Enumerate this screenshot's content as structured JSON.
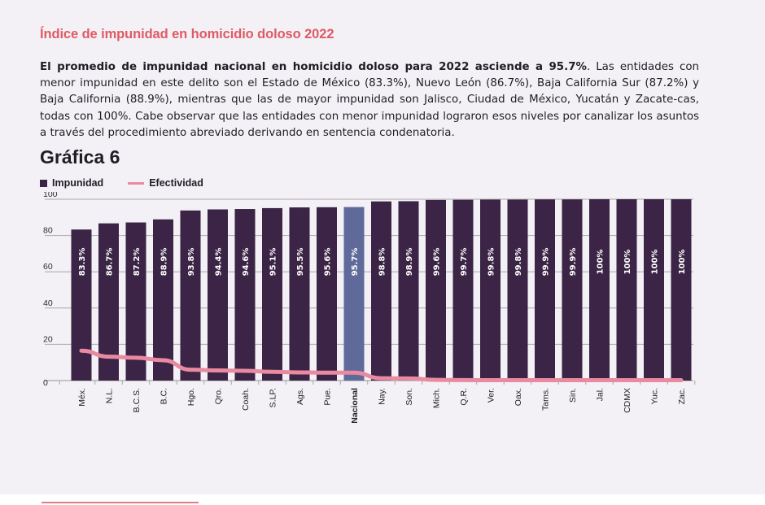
{
  "section_title": "Índice de impunidad en homicidio doloso 2022",
  "paragraph": {
    "bold": "El promedio de impunidad nacional en homicidio doloso para 2022 asciende a 95.7%",
    "rest": ". Las entidades con menor impunidad en este delito son el Estado de México (83.3%), Nuevo León (86.7%), Baja California Sur (87.2%) y Baja California (88.9%), mientras que las de mayor impunidad son Jalisco, Ciudad de México, Yucatán y Zacate-cas, todas con 100%. Cabe observar que las entidades con menor impunidad lograron esos niveles por canalizar los asuntos a través del procedimiento abreviado derivando en sentencia condenatoria."
  },
  "colors": {
    "title_accent": "#e05a63",
    "bar": "#3b2445",
    "bar_highlight": "#5f6a9a",
    "line": "#e98aa0",
    "grid": "#a8a6ab"
  },
  "chart_data": {
    "type": "bar",
    "title": "Gráfica 6",
    "xlabel": "",
    "ylabel": "",
    "ylim": [
      0,
      100
    ],
    "yticks": [
      0,
      20,
      40,
      60,
      80,
      100
    ],
    "grid": true,
    "legend_position": "top-left",
    "highlight_category": "Nacional",
    "categories": [
      "Méx.",
      "N.L.",
      "B.C.S.",
      "B.C.",
      "Hgo.",
      "Qro.",
      "Coah.",
      "S.LP.",
      "Ags.",
      "Pue.",
      "Nacional",
      "Nay.",
      "Son.",
      "Mich.",
      "Q.R.",
      "Ver.",
      "Oax.",
      "Tams.",
      "Sin.",
      "Jal.",
      "CDMX",
      "Yuc.",
      "Zac."
    ],
    "series": [
      {
        "name": "Impunidad",
        "type": "bar",
        "values": [
          83.3,
          86.7,
          87.2,
          88.9,
          93.8,
          94.4,
          94.6,
          95.1,
          95.5,
          95.6,
          95.7,
          98.8,
          98.9,
          99.6,
          99.7,
          99.8,
          99.8,
          99.9,
          99.9,
          100,
          100,
          100,
          100
        ],
        "labels": [
          "83.3%",
          "86.7%",
          "87.2%",
          "88.9%",
          "93.8%",
          "94.4%",
          "94.6%",
          "95.1%",
          "95.5%",
          "95.6%",
          "95.7%",
          "98.8%",
          "98.9%",
          "99.6%",
          "99.7%",
          "99.8%",
          "99.8%",
          "99.9%",
          "99.9%",
          "100%",
          "100%",
          "100%",
          "100%"
        ]
      },
      {
        "name": "Efectividad",
        "type": "line",
        "values": [
          16.5,
          13.2,
          12.6,
          11.2,
          6.0,
          5.6,
          5.4,
          4.8,
          4.5,
          4.4,
          4.4,
          1.3,
          1.2,
          0.4,
          0.3,
          0.2,
          0.2,
          0.2,
          0.2,
          0.2,
          0.2,
          0.2,
          0.2
        ]
      }
    ]
  }
}
